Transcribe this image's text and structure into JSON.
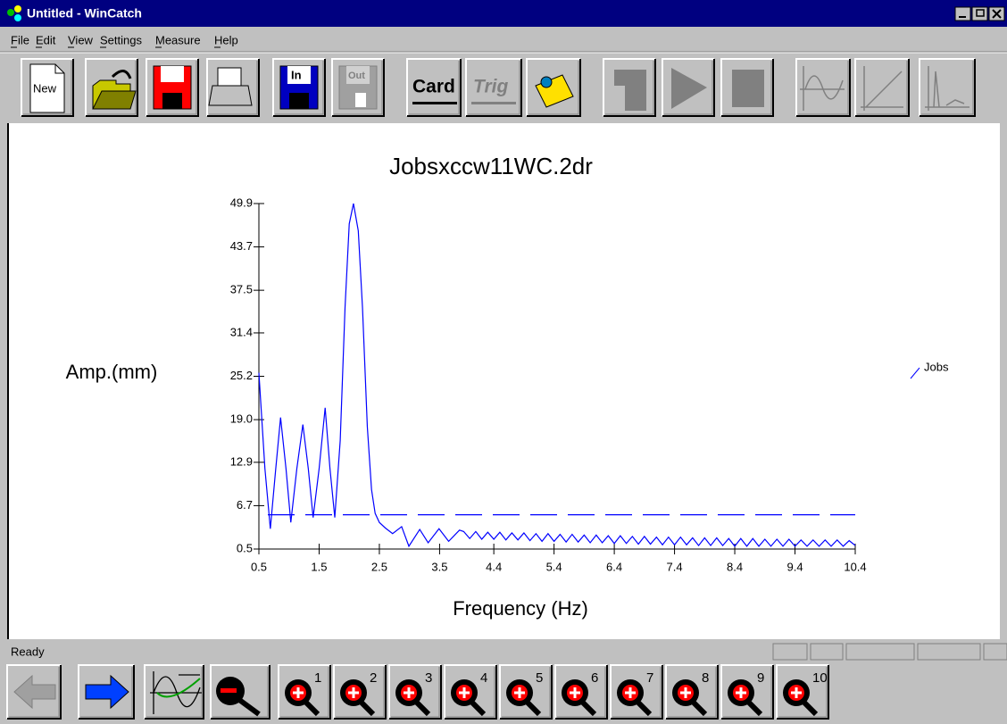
{
  "window": {
    "title": "Untitled - WinCatch"
  },
  "menu": [
    "File",
    "Edit",
    "View",
    "Settings",
    "Measure",
    "Help"
  ],
  "toolbar": {
    "new": "New",
    "in": "In",
    "out": "Out",
    "card": "Card",
    "trig": "Trig"
  },
  "chart_data": {
    "type": "line",
    "title": "Jobsxccw11WC.2dr",
    "x_label": "Frequency (Hz)",
    "y_label": "Amp.(mm)",
    "x": [
      0.5,
      0.6,
      0.69,
      0.78,
      0.86,
      0.95,
      1.03,
      1.13,
      1.23,
      1.32,
      1.4,
      1.5,
      1.6,
      1.68,
      1.76,
      1.85,
      1.93,
      2.0,
      2.07,
      2.15,
      2.22,
      2.3,
      2.37,
      2.43,
      2.5,
      2.6,
      2.72,
      2.87,
      2.99,
      3.17,
      3.31,
      3.49,
      3.65,
      3.83,
      3.9,
      4.0,
      4.1,
      4.2,
      4.3,
      4.4,
      4.5,
      4.6,
      4.7,
      4.8,
      4.9,
      5.0,
      5.1,
      5.2,
      5.3,
      5.4,
      5.5,
      5.6,
      5.7,
      5.8,
      5.9,
      6.0,
      6.1,
      6.2,
      6.3,
      6.4,
      6.5,
      6.6,
      6.7,
      6.8,
      6.9,
      7.0,
      7.1,
      7.2,
      7.3,
      7.4,
      7.5,
      7.6,
      7.7,
      7.8,
      7.9,
      8.0,
      8.1,
      8.2,
      8.3,
      8.4,
      8.5,
      8.6,
      8.7,
      8.8,
      8.9,
      9.0,
      9.1,
      9.2,
      9.3,
      9.4,
      9.5,
      9.6,
      9.7,
      9.8,
      9.9,
      10.0,
      10.1,
      10.2,
      10.3,
      10.4
    ],
    "series": [
      {
        "name": "Jobs",
        "color": "#0000ff",
        "values": [
          25.7,
          12,
          3.4,
          12,
          19.3,
          12,
          4.3,
          12,
          18.3,
          12,
          5.0,
          12,
          20.7,
          12,
          5.0,
          16,
          35,
          47,
          49.9,
          46,
          35,
          18,
          9,
          5.6,
          4.3,
          3.5,
          2.7,
          3.7,
          0.9,
          3.3,
          1.4,
          3.4,
          1.6,
          3.2,
          3.0,
          2.0,
          3.0,
          1.9,
          2.9,
          1.9,
          2.9,
          1.8,
          2.8,
          1.8,
          2.8,
          1.7,
          2.7,
          1.6,
          2.7,
          1.6,
          2.6,
          1.5,
          2.6,
          1.5,
          2.5,
          1.4,
          2.5,
          1.4,
          2.4,
          1.3,
          2.4,
          1.3,
          2.3,
          1.2,
          2.3,
          1.2,
          2.2,
          1.1,
          2.2,
          1.1,
          2.2,
          1.1,
          2.1,
          1.0,
          2.1,
          1.0,
          2.1,
          1.0,
          2.0,
          0.9,
          2.0,
          0.9,
          2.0,
          0.9,
          1.9,
          0.9,
          1.9,
          0.9,
          1.9,
          0.9,
          1.8,
          0.9,
          1.8,
          0.9,
          1.8,
          0.9,
          1.8,
          0.9,
          1.7,
          1.0
        ]
      }
    ],
    "reference_line": 5.4,
    "xlim": [
      0.5,
      10.4
    ],
    "ylim": [
      0.5,
      49.9
    ],
    "xticks": [
      0.5,
      1.5,
      2.5,
      3.5,
      4.4,
      5.4,
      6.4,
      7.4,
      8.4,
      9.4,
      10.4
    ],
    "yticks": [
      0.5,
      6.7,
      12.9,
      {
        "value": 19,
        "label": "19.0"
      },
      25.2,
      31.4,
      37.5,
      43.7,
      49.9
    ],
    "grid": false,
    "legend": "right"
  },
  "status": {
    "text": "Ready"
  },
  "zoom_buttons": [
    "1",
    "2",
    "3",
    "4",
    "5",
    "6",
    "7",
    "8",
    "9",
    "10"
  ]
}
